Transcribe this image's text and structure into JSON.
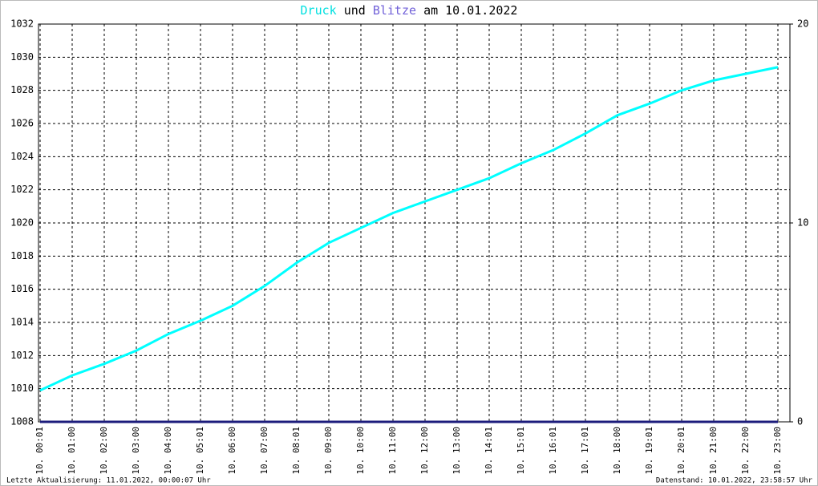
{
  "chart_data": {
    "type": "line",
    "title_parts": [
      "Druck",
      "und",
      "Blitze",
      "am 10.01.2022"
    ],
    "categories": [
      "10. 00:01",
      "10. 01:00",
      "10. 02:00",
      "10. 03:00",
      "10. 04:00",
      "10. 05:01",
      "10. 06:00",
      "10. 07:00",
      "10. 08:01",
      "10. 09:00",
      "10. 10:00",
      "10. 11:00",
      "10. 12:00",
      "10. 13:00",
      "10. 14:01",
      "10. 15:01",
      "10. 16:01",
      "10. 17:01",
      "10. 18:00",
      "10. 19:01",
      "10. 20:01",
      "10. 21:00",
      "10. 22:00",
      "10. 23:00"
    ],
    "series": [
      {
        "name": "Druck",
        "color": "#00ffff",
        "values": [
          1009.9,
          1010.8,
          1011.5,
          1012.3,
          1013.3,
          1014.1,
          1015.0,
          1016.2,
          1017.6,
          1018.8,
          1019.7,
          1020.6,
          1021.3,
          1022.0,
          1022.7,
          1023.6,
          1024.4,
          1025.4,
          1026.5,
          1027.2,
          1028.0,
          1028.6,
          1029.0,
          1029.4
        ]
      },
      {
        "name": "Blitze",
        "color": "#1c1c7c",
        "axis": "y2",
        "values": [
          0,
          0,
          0,
          0,
          0,
          0,
          0,
          0,
          0,
          0,
          0,
          0,
          0,
          0,
          0,
          0,
          0,
          0,
          0,
          0,
          0,
          0,
          0,
          0
        ]
      }
    ],
    "ylim": [
      1008,
      1032
    ],
    "yticks": [
      1008,
      1010,
      1012,
      1014,
      1016,
      1018,
      1020,
      1022,
      1024,
      1026,
      1028,
      1030,
      1032
    ],
    "y2lim": [
      0,
      20
    ],
    "y2ticks": [
      0,
      10,
      20
    ],
    "grid": true,
    "footer_left": "Letzte Aktualisierung: 11.01.2022, 00:00:07 Uhr",
    "footer_right": "Datenstand: 10.01.2022, 23:58:57 Uhr"
  }
}
